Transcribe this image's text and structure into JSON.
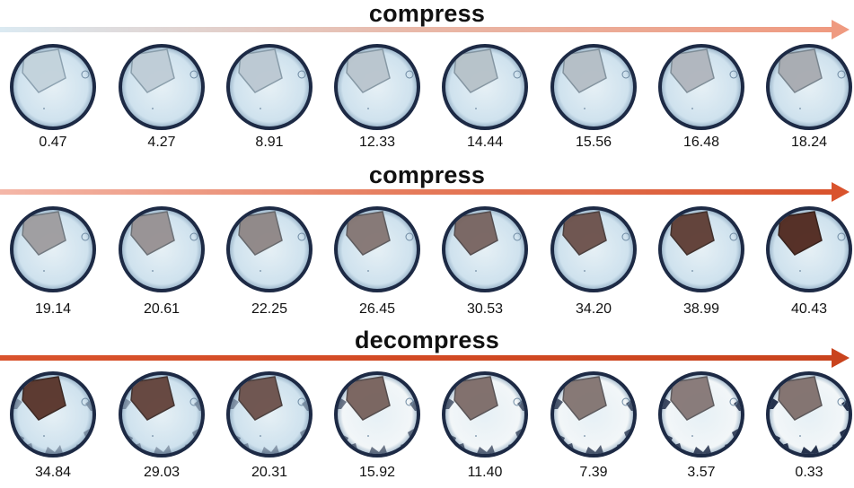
{
  "rows": [
    {
      "label": "compress",
      "arrow_colors": [
        "#dbeaf2",
        "#e9b8a8",
        "#ef9a80"
      ],
      "values": [
        "0.47",
        "4.27",
        "8.91",
        "12.33",
        "14.44",
        "15.56",
        "16.48",
        "18.24"
      ],
      "darkness": [
        0.05,
        0.08,
        0.1,
        0.12,
        0.14,
        0.16,
        0.2,
        0.26
      ],
      "crack": [
        0,
        0,
        0,
        0,
        0,
        0,
        0,
        0
      ]
    },
    {
      "label": "compress",
      "arrow_colors": [
        "#f4b7a8",
        "#e57a5a",
        "#d9532d"
      ],
      "values": [
        "19.14",
        "20.61",
        "22.25",
        "26.45",
        "30.53",
        "34.20",
        "38.99",
        "40.43"
      ],
      "darkness": [
        0.34,
        0.4,
        0.46,
        0.55,
        0.64,
        0.74,
        0.85,
        0.95
      ],
      "crack": [
        0,
        0,
        0,
        0,
        0,
        0,
        0,
        0
      ]
    },
    {
      "label": "decompress",
      "arrow_colors": [
        "#d9532d",
        "#d24a24",
        "#c9431d"
      ],
      "values": [
        "34.84",
        "29.03",
        "20.31",
        "15.92",
        "11.40",
        "7.39",
        "3.57",
        "0.33"
      ],
      "darkness": [
        0.9,
        0.82,
        0.74,
        0.66,
        0.6,
        0.56,
        0.54,
        0.58
      ],
      "crack": [
        0.05,
        0.05,
        0.08,
        0.45,
        0.55,
        0.65,
        0.8,
        1.0
      ]
    }
  ]
}
